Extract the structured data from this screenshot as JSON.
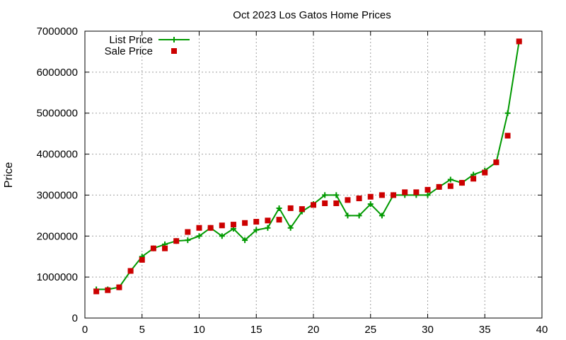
{
  "chart_data": {
    "type": "line",
    "title": "Oct 2023 Los Gatos Home Prices",
    "xlabel": "",
    "ylabel": "Price",
    "xlim": [
      0,
      40
    ],
    "ylim": [
      0,
      7000000
    ],
    "xticks": [
      0,
      5,
      10,
      15,
      20,
      25,
      30,
      35,
      40
    ],
    "yticks": [
      0,
      1000000,
      2000000,
      3000000,
      4000000,
      5000000,
      6000000,
      7000000
    ],
    "grid": true,
    "legend_position": "top-left",
    "x": [
      1,
      2,
      3,
      4,
      5,
      6,
      7,
      8,
      9,
      10,
      11,
      12,
      13,
      14,
      15,
      16,
      17,
      18,
      19,
      20,
      21,
      22,
      23,
      24,
      25,
      26,
      27,
      28,
      29,
      30,
      31,
      32,
      33,
      34,
      35,
      36,
      37,
      38
    ],
    "series": [
      {
        "name": "List Price",
        "style": "line+cross",
        "color": "#009900",
        "values": [
          700000,
          700000,
          750000,
          1150000,
          1500000,
          1700000,
          1800000,
          1880000,
          1900000,
          2000000,
          2200000,
          2000000,
          2180000,
          1900000,
          2150000,
          2200000,
          2680000,
          2200000,
          2600000,
          2780000,
          3000000,
          3000000,
          2500000,
          2500000,
          2780000,
          2500000,
          3000000,
          3000000,
          3000000,
          3000000,
          3200000,
          3380000,
          3300000,
          3500000,
          3600000,
          3800000,
          5000000,
          6750000
        ]
      },
      {
        "name": "Sale Price",
        "style": "square",
        "color": "#cc0000",
        "values": [
          650000,
          680000,
          750000,
          1150000,
          1420000,
          1700000,
          1700000,
          1880000,
          2100000,
          2200000,
          2200000,
          2260000,
          2280000,
          2320000,
          2350000,
          2380000,
          2400000,
          2680000,
          2660000,
          2760000,
          2800000,
          2800000,
          2880000,
          2920000,
          2960000,
          3000000,
          3000000,
          3070000,
          3070000,
          3130000,
          3200000,
          3220000,
          3300000,
          3400000,
          3550000,
          3800000,
          4450000,
          6750000
        ]
      }
    ]
  }
}
